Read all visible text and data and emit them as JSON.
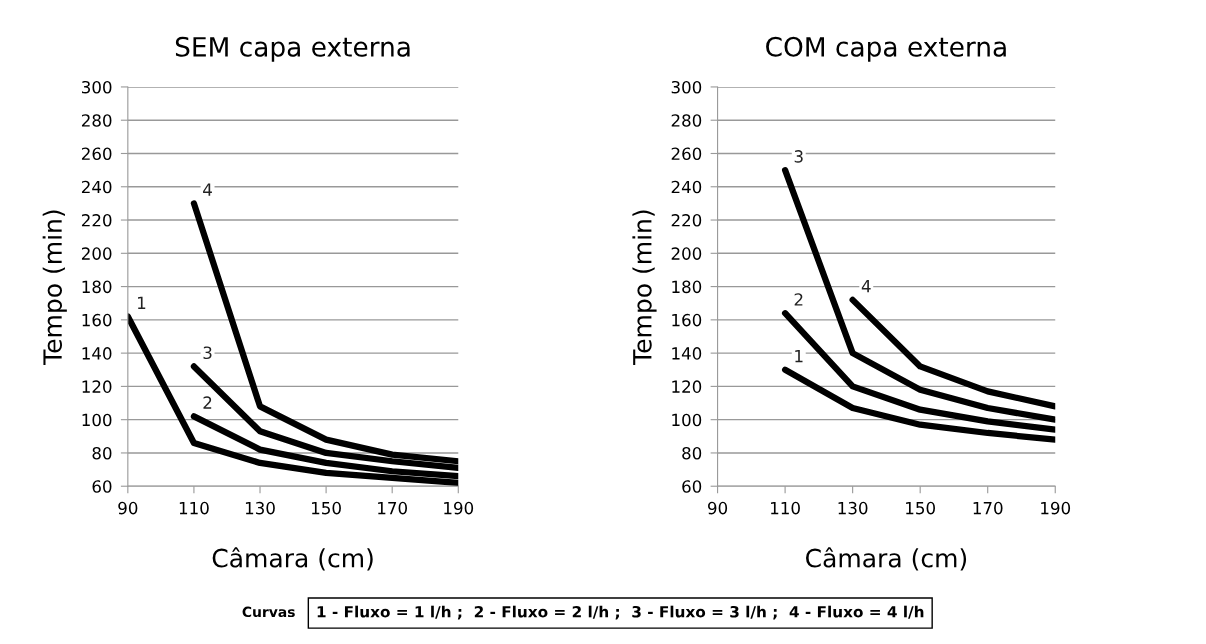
{
  "chart_data": [
    {
      "type": "line",
      "title": "SEM capa externa",
      "xlabel": "Câmara (cm)",
      "ylabel": "Tempo (min)",
      "x": [
        90,
        110,
        130,
        150,
        170,
        190
      ],
      "series": [
        {
          "name": "1",
          "color": "#000000",
          "values": [
            162,
            86,
            74,
            68,
            65,
            62
          ]
        },
        {
          "name": "2",
          "color": "#000000",
          "values": [
            null,
            102,
            82,
            74,
            69,
            66
          ]
        },
        {
          "name": "3",
          "color": "#000000",
          "values": [
            null,
            132,
            93,
            80,
            75,
            71
          ]
        },
        {
          "name": "4",
          "color": "#000000",
          "values": [
            null,
            230,
            108,
            88,
            79,
            75
          ]
        }
      ],
      "xlim": [
        90,
        190
      ],
      "xticks": [
        90,
        110,
        130,
        150,
        170,
        190
      ],
      "ylim": [
        60,
        300
      ],
      "yticks": [
        60,
        80,
        100,
        120,
        140,
        160,
        180,
        200,
        220,
        240,
        260,
        280,
        300
      ],
      "grid": "y",
      "legend": false,
      "marker": "none",
      "line_style": "solid"
    },
    {
      "type": "line",
      "title": "COM capa externa",
      "xlabel": "Câmara (cm)",
      "ylabel": "Tempo (min)",
      "x": [
        110,
        130,
        150,
        170,
        190
      ],
      "series": [
        {
          "name": "1",
          "color": "#000000",
          "values": [
            130,
            107,
            97,
            92,
            88
          ]
        },
        {
          "name": "2",
          "color": "#000000",
          "values": [
            164,
            120,
            106,
            99,
            94
          ]
        },
        {
          "name": "3",
          "color": "#000000",
          "values": [
            250,
            140,
            118,
            107,
            100
          ]
        },
        {
          "name": "4",
          "color": "#000000",
          "values": [
            null,
            172,
            132,
            117,
            108
          ]
        }
      ],
      "xlim": [
        90,
        190
      ],
      "xticks": [
        90,
        110,
        130,
        150,
        170,
        190
      ],
      "ylim": [
        60,
        300
      ],
      "yticks": [
        60,
        80,
        100,
        120,
        140,
        160,
        180,
        200,
        220,
        240,
        260,
        280,
        300
      ],
      "grid": "y",
      "legend": false,
      "marker": "none",
      "line_style": "solid",
      "annotations": [
        "Curvas",
        "1 - Fluxo = 1 l/h ;  2 - Fluxo = 2 l/h ;  3 - Fluxo = 3 l/h ;  4 - Fluxo = 4 l/h"
      ]
    }
  ]
}
